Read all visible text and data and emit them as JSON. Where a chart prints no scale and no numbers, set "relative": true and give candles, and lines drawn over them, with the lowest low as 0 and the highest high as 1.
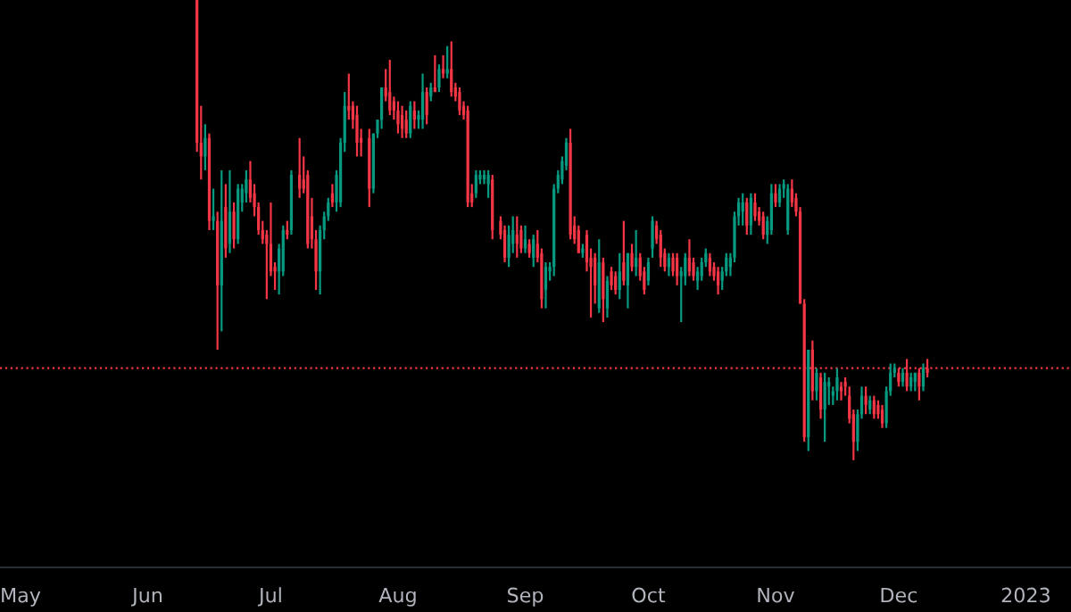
{
  "chart_data": {
    "type": "candlestick",
    "relative": true,
    "xlim": [
      "2022-04-26",
      "2023-01-12"
    ],
    "xticks": [
      {
        "value": "2022-05-01",
        "label": "May"
      },
      {
        "value": "2022-06-01",
        "label": "Jun"
      },
      {
        "value": "2022-07-01",
        "label": "Jul"
      },
      {
        "value": "2022-08-01",
        "label": "Aug"
      },
      {
        "value": "2022-09-01",
        "label": "Sep"
      },
      {
        "value": "2022-10-01",
        "label": "Oct"
      },
      {
        "value": "2022-11-01",
        "label": "Nov"
      },
      {
        "value": "2022-12-01",
        "label": "Dec"
      },
      {
        "value": "2023-01-01",
        "label": "2023"
      }
    ],
    "tick_labels": "x",
    "grid": false,
    "ref_lines": [
      {
        "axis": "y",
        "value": 0.2,
        "color": "#f23645",
        "line_style": "dotted"
      }
    ],
    "x": [
      "2022-06-13",
      "2022-06-14",
      "2022-06-15",
      "2022-06-16",
      "2022-06-17",
      "2022-06-18",
      "2022-06-19",
      "2022-06-20",
      "2022-06-21",
      "2022-06-22",
      "2022-06-23",
      "2022-06-24",
      "2022-06-25",
      "2022-06-26",
      "2022-06-27",
      "2022-06-28",
      "2022-06-29",
      "2022-06-30",
      "2022-07-01",
      "2022-07-02",
      "2022-07-03",
      "2022-07-04",
      "2022-07-05",
      "2022-07-06",
      "2022-07-08",
      "2022-07-09",
      "2022-07-10",
      "2022-07-11",
      "2022-07-12",
      "2022-07-13",
      "2022-07-14",
      "2022-07-15",
      "2022-07-16",
      "2022-07-17",
      "2022-07-18",
      "2022-07-19",
      "2022-07-20",
      "2022-07-21",
      "2022-07-22",
      "2022-07-23",
      "2022-07-25",
      "2022-07-26",
      "2022-07-27",
      "2022-07-28",
      "2022-07-29",
      "2022-07-30",
      "2022-07-31",
      "2022-08-01",
      "2022-08-02",
      "2022-08-03",
      "2022-08-04",
      "2022-08-05",
      "2022-08-06",
      "2022-08-07",
      "2022-08-08",
      "2022-08-09",
      "2022-08-10",
      "2022-08-11",
      "2022-08-12",
      "2022-08-13",
      "2022-08-14",
      "2022-08-15",
      "2022-08-16",
      "2022-08-17",
      "2022-08-18",
      "2022-08-19",
      "2022-08-20",
      "2022-08-21",
      "2022-08-22",
      "2022-08-23",
      "2022-08-24",
      "2022-08-26",
      "2022-08-27",
      "2022-08-28",
      "2022-08-29",
      "2022-08-30",
      "2022-08-31",
      "2022-09-01",
      "2022-09-02",
      "2022-09-03",
      "2022-09-04",
      "2022-09-05",
      "2022-09-06",
      "2022-09-07",
      "2022-09-08",
      "2022-09-09",
      "2022-09-10",
      "2022-09-11",
      "2022-09-12",
      "2022-09-13",
      "2022-09-14",
      "2022-09-15",
      "2022-09-16",
      "2022-09-17",
      "2022-09-18",
      "2022-09-19",
      "2022-09-20",
      "2022-09-21",
      "2022-09-22",
      "2022-09-23",
      "2022-09-24",
      "2022-09-25",
      "2022-09-26",
      "2022-09-27",
      "2022-09-28",
      "2022-09-29",
      "2022-09-30",
      "2022-10-01",
      "2022-10-02",
      "2022-10-03",
      "2022-10-04",
      "2022-10-05",
      "2022-10-06",
      "2022-10-07",
      "2022-10-08",
      "2022-10-09",
      "2022-10-10",
      "2022-10-11",
      "2022-10-12",
      "2022-10-13",
      "2022-10-14",
      "2022-10-15",
      "2022-10-16",
      "2022-10-17",
      "2022-10-18",
      "2022-10-19",
      "2022-10-20",
      "2022-10-21",
      "2022-10-22",
      "2022-10-23",
      "2022-10-24",
      "2022-10-25",
      "2022-10-26",
      "2022-10-27",
      "2022-10-28",
      "2022-10-29",
      "2022-10-30",
      "2022-10-31",
      "2022-11-01",
      "2022-11-02",
      "2022-11-03",
      "2022-11-04",
      "2022-11-05",
      "2022-11-06",
      "2022-11-07",
      "2022-11-08",
      "2022-11-09",
      "2022-11-10",
      "2022-11-11",
      "2022-11-12",
      "2022-11-13",
      "2022-11-14",
      "2022-11-15",
      "2022-11-16",
      "2022-11-17",
      "2022-11-18",
      "2022-11-19",
      "2022-11-20",
      "2022-11-21",
      "2022-11-22",
      "2022-11-23",
      "2022-11-24",
      "2022-11-25",
      "2022-11-26",
      "2022-11-27",
      "2022-11-28",
      "2022-11-29",
      "2022-11-30",
      "2022-12-01",
      "2022-12-02",
      "2022-12-03",
      "2022-12-04",
      "2022-12-05",
      "2022-12-06",
      "2022-12-07",
      "2022-12-08"
    ],
    "ohlc": [
      [
        1.0,
        1.0,
        0.67,
        0.69
      ],
      [
        0.69,
        0.77,
        0.61,
        0.66
      ],
      [
        0.66,
        0.73,
        0.63,
        0.7
      ],
      [
        0.7,
        0.71,
        0.5,
        0.52
      ],
      [
        0.52,
        0.59,
        0.5,
        0.53
      ],
      [
        0.52,
        0.54,
        0.24,
        0.38
      ],
      [
        0.38,
        0.63,
        0.28,
        0.52
      ],
      [
        0.55,
        0.6,
        0.44,
        0.46
      ],
      [
        0.47,
        0.63,
        0.45,
        0.54
      ],
      [
        0.54,
        0.56,
        0.46,
        0.48
      ],
      [
        0.48,
        0.6,
        0.47,
        0.59
      ],
      [
        0.56,
        0.6,
        0.54,
        0.59
      ],
      [
        0.58,
        0.63,
        0.56,
        0.61
      ],
      [
        0.61,
        0.65,
        0.56,
        0.57
      ],
      [
        0.58,
        0.6,
        0.53,
        0.55
      ],
      [
        0.55,
        0.56,
        0.49,
        0.5
      ],
      [
        0.5,
        0.52,
        0.47,
        0.48
      ],
      [
        0.49,
        0.5,
        0.35,
        0.47
      ],
      [
        0.47,
        0.56,
        0.4,
        0.41
      ],
      [
        0.42,
        0.43,
        0.37,
        0.41
      ],
      [
        0.41,
        0.47,
        0.36,
        0.46
      ],
      [
        0.41,
        0.51,
        0.4,
        0.5
      ],
      [
        0.5,
        0.52,
        0.48,
        0.49
      ],
      [
        0.5,
        0.63,
        0.49,
        0.62
      ],
      [
        0.62,
        0.7,
        0.57,
        0.59
      ],
      [
        0.61,
        0.66,
        0.58,
        0.59
      ],
      [
        0.62,
        0.63,
        0.46,
        0.47
      ],
      [
        0.53,
        0.57,
        0.46,
        0.48
      ],
      [
        0.48,
        0.5,
        0.37,
        0.41
      ],
      [
        0.41,
        0.51,
        0.36,
        0.5
      ],
      [
        0.5,
        0.54,
        0.48,
        0.53
      ],
      [
        0.53,
        0.57,
        0.52,
        0.56
      ],
      [
        0.58,
        0.6,
        0.55,
        0.56
      ],
      [
        0.56,
        0.63,
        0.54,
        0.62
      ],
      [
        0.56,
        0.7,
        0.55,
        0.69
      ],
      [
        0.69,
        0.8,
        0.67,
        0.77
      ],
      [
        0.77,
        0.84,
        0.74,
        0.76
      ],
      [
        0.77,
        0.78,
        0.72,
        0.74
      ],
      [
        0.75,
        0.77,
        0.66,
        0.69
      ],
      [
        0.7,
        0.72,
        0.66,
        0.69
      ],
      [
        0.7,
        0.72,
        0.55,
        0.59
      ],
      [
        0.59,
        0.71,
        0.58,
        0.71
      ],
      [
        0.71,
        0.74,
        0.7,
        0.74
      ],
      [
        0.74,
        0.81,
        0.72,
        0.81
      ],
      [
        0.81,
        0.85,
        0.78,
        0.79
      ],
      [
        0.8,
        0.87,
        0.75,
        0.76
      ],
      [
        0.78,
        0.79,
        0.74,
        0.76
      ],
      [
        0.76,
        0.78,
        0.71,
        0.73
      ],
      [
        0.75,
        0.77,
        0.7,
        0.72
      ],
      [
        0.74,
        0.76,
        0.7,
        0.71
      ],
      [
        0.71,
        0.78,
        0.7,
        0.77
      ],
      [
        0.76,
        0.78,
        0.72,
        0.74
      ],
      [
        0.74,
        0.76,
        0.72,
        0.75
      ],
      [
        0.74,
        0.84,
        0.72,
        0.8
      ],
      [
        0.8,
        0.81,
        0.73,
        0.75
      ],
      [
        0.79,
        0.82,
        0.78,
        0.81
      ],
      [
        0.81,
        0.88,
        0.8,
        0.8
      ],
      [
        0.81,
        0.86,
        0.8,
        0.85
      ],
      [
        0.85,
        0.88,
        0.83,
        0.84
      ],
      [
        0.84,
        0.9,
        0.83,
        0.85
      ],
      [
        0.85,
        0.91,
        0.79,
        0.8
      ],
      [
        0.81,
        0.82,
        0.78,
        0.79
      ],
      [
        0.8,
        0.81,
        0.75,
        0.76
      ],
      [
        0.77,
        0.78,
        0.74,
        0.75
      ],
      [
        0.76,
        0.77,
        0.55,
        0.56
      ],
      [
        0.58,
        0.6,
        0.55,
        0.56
      ],
      [
        0.58,
        0.63,
        0.57,
        0.62
      ],
      [
        0.61,
        0.63,
        0.6,
        0.62
      ],
      [
        0.61,
        0.63,
        0.6,
        0.62
      ],
      [
        0.6,
        0.63,
        0.57,
        0.62
      ],
      [
        0.61,
        0.62,
        0.48,
        0.5
      ],
      [
        0.52,
        0.53,
        0.48,
        0.49
      ],
      [
        0.5,
        0.51,
        0.43,
        0.44
      ],
      [
        0.44,
        0.51,
        0.42,
        0.49
      ],
      [
        0.47,
        0.53,
        0.45,
        0.5
      ],
      [
        0.49,
        0.53,
        0.44,
        0.47
      ],
      [
        0.5,
        0.51,
        0.45,
        0.46
      ],
      [
        0.46,
        0.51,
        0.45,
        0.48
      ],
      [
        0.47,
        0.48,
        0.44,
        0.45
      ],
      [
        0.44,
        0.49,
        0.42,
        0.48
      ],
      [
        0.47,
        0.5,
        0.43,
        0.44
      ],
      [
        0.45,
        0.46,
        0.33,
        0.35
      ],
      [
        0.37,
        0.43,
        0.33,
        0.42
      ],
      [
        0.41,
        0.43,
        0.39,
        0.42
      ],
      [
        0.42,
        0.6,
        0.4,
        0.59
      ],
      [
        0.59,
        0.63,
        0.58,
        0.62
      ],
      [
        0.61,
        0.66,
        0.6,
        0.65
      ],
      [
        0.64,
        0.7,
        0.63,
        0.69
      ],
      [
        0.69,
        0.72,
        0.48,
        0.49
      ],
      [
        0.51,
        0.53,
        0.47,
        0.48
      ],
      [
        0.5,
        0.51,
        0.45,
        0.45
      ],
      [
        0.45,
        0.47,
        0.44,
        0.46
      ],
      [
        0.49,
        0.5,
        0.41,
        0.43
      ],
      [
        0.44,
        0.46,
        0.31,
        0.42
      ],
      [
        0.44,
        0.45,
        0.34,
        0.38
      ],
      [
        0.33,
        0.48,
        0.32,
        0.43
      ],
      [
        0.43,
        0.44,
        0.3,
        0.35
      ],
      [
        0.33,
        0.4,
        0.31,
        0.39
      ],
      [
        0.41,
        0.42,
        0.37,
        0.38
      ],
      [
        0.4,
        0.41,
        0.36,
        0.37
      ],
      [
        0.37,
        0.45,
        0.35,
        0.41
      ],
      [
        0.43,
        0.52,
        0.38,
        0.39
      ],
      [
        0.38,
        0.45,
        0.33,
        0.45
      ],
      [
        0.45,
        0.47,
        0.41,
        0.42
      ],
      [
        0.42,
        0.5,
        0.4,
        0.44
      ],
      [
        0.44,
        0.45,
        0.39,
        0.4
      ],
      [
        0.41,
        0.42,
        0.36,
        0.37
      ],
      [
        0.39,
        0.44,
        0.38,
        0.43
      ],
      [
        0.46,
        0.53,
        0.44,
        0.52
      ],
      [
        0.51,
        0.52,
        0.47,
        0.48
      ],
      [
        0.49,
        0.5,
        0.42,
        0.44
      ],
      [
        0.45,
        0.46,
        0.41,
        0.42
      ],
      [
        0.42,
        0.45,
        0.4,
        0.44
      ],
      [
        0.44,
        0.45,
        0.4,
        0.41
      ],
      [
        0.44,
        0.45,
        0.38,
        0.4
      ],
      [
        0.4,
        0.42,
        0.3,
        0.41
      ],
      [
        0.4,
        0.45,
        0.38,
        0.44
      ],
      [
        0.44,
        0.48,
        0.4,
        0.41
      ],
      [
        0.43,
        0.44,
        0.39,
        0.4
      ],
      [
        0.39,
        0.42,
        0.37,
        0.41
      ],
      [
        0.4,
        0.44,
        0.39,
        0.43
      ],
      [
        0.43,
        0.46,
        0.42,
        0.45
      ],
      [
        0.44,
        0.45,
        0.4,
        0.41
      ],
      [
        0.42,
        0.43,
        0.39,
        0.4
      ],
      [
        0.41,
        0.42,
        0.36,
        0.38
      ],
      [
        0.39,
        0.42,
        0.37,
        0.41
      ],
      [
        0.41,
        0.45,
        0.4,
        0.44
      ],
      [
        0.42,
        0.45,
        0.4,
        0.44
      ],
      [
        0.44,
        0.54,
        0.43,
        0.53
      ],
      [
        0.53,
        0.57,
        0.51,
        0.56
      ],
      [
        0.54,
        0.58,
        0.51,
        0.56
      ],
      [
        0.56,
        0.57,
        0.49,
        0.51
      ],
      [
        0.51,
        0.58,
        0.49,
        0.57
      ],
      [
        0.56,
        0.58,
        0.52,
        0.53
      ],
      [
        0.54,
        0.55,
        0.51,
        0.52
      ],
      [
        0.53,
        0.54,
        0.48,
        0.49
      ],
      [
        0.49,
        0.53,
        0.47,
        0.52
      ],
      [
        0.5,
        0.6,
        0.49,
        0.58
      ],
      [
        0.58,
        0.6,
        0.55,
        0.56
      ],
      [
        0.56,
        0.6,
        0.55,
        0.59
      ],
      [
        0.59,
        0.61,
        0.57,
        0.6
      ],
      [
        0.5,
        0.6,
        0.49,
        0.59
      ],
      [
        0.59,
        0.61,
        0.55,
        0.56
      ],
      [
        0.57,
        0.58,
        0.53,
        0.54
      ],
      [
        0.54,
        0.55,
        0.34,
        0.34
      ],
      [
        0.34,
        0.35,
        0.04,
        0.05
      ],
      [
        0.05,
        0.24,
        0.02,
        0.24
      ],
      [
        0.24,
        0.26,
        0.13,
        0.15
      ],
      [
        0.15,
        0.2,
        0.13,
        0.19
      ],
      [
        0.18,
        0.19,
        0.09,
        0.11
      ],
      [
        0.11,
        0.19,
        0.04,
        0.17
      ],
      [
        0.16,
        0.18,
        0.12,
        0.17
      ],
      [
        0.14,
        0.16,
        0.12,
        0.15
      ],
      [
        0.15,
        0.2,
        0.13,
        0.18
      ],
      [
        0.16,
        0.17,
        0.13,
        0.15
      ],
      [
        0.17,
        0.18,
        0.14,
        0.16
      ],
      [
        0.14,
        0.16,
        0.08,
        0.09
      ],
      [
        0.1,
        0.11,
        0.0,
        0.04
      ],
      [
        0.04,
        0.11,
        0.02,
        0.1
      ],
      [
        0.1,
        0.16,
        0.09,
        0.14
      ],
      [
        0.14,
        0.16,
        0.1,
        0.12
      ],
      [
        0.11,
        0.14,
        0.1,
        0.13
      ],
      [
        0.13,
        0.14,
        0.09,
        0.1
      ],
      [
        0.12,
        0.13,
        0.09,
        0.1
      ],
      [
        0.11,
        0.12,
        0.07,
        0.08
      ],
      [
        0.08,
        0.16,
        0.07,
        0.15
      ],
      [
        0.15,
        0.21,
        0.14,
        0.19
      ],
      [
        0.19,
        0.21,
        0.18,
        0.2
      ],
      [
        0.19,
        0.2,
        0.16,
        0.17
      ],
      [
        0.17,
        0.2,
        0.16,
        0.19
      ],
      [
        0.19,
        0.22,
        0.15,
        0.16
      ],
      [
        0.16,
        0.19,
        0.15,
        0.18
      ],
      [
        0.17,
        0.19,
        0.15,
        0.19
      ],
      [
        0.19,
        0.2,
        0.13,
        0.16
      ],
      [
        0.16,
        0.21,
        0.15,
        0.2
      ],
      [
        0.2,
        0.22,
        0.18,
        0.19
      ]
    ]
  }
}
